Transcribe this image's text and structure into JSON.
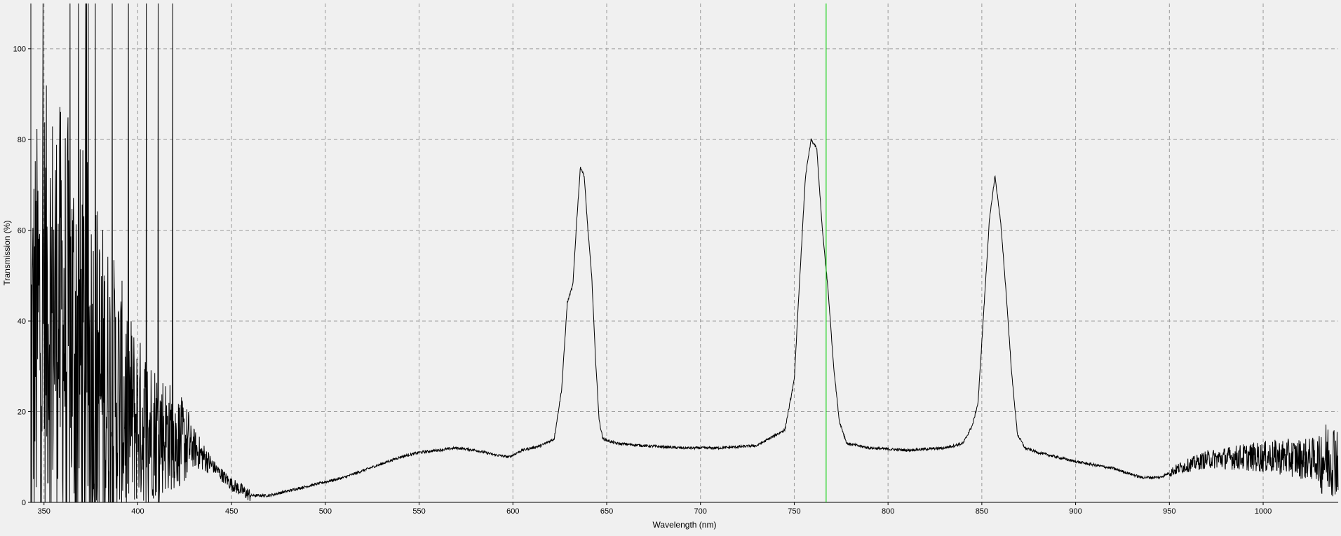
{
  "chart_data": {
    "type": "line",
    "xlabel": "Wavelength (nm)",
    "ylabel": "Transmission (%)",
    "xlim": [
      343,
      1040
    ],
    "ylim": [
      0,
      110
    ],
    "x_ticks": [
      350,
      400,
      450,
      500,
      550,
      600,
      650,
      700,
      750,
      800,
      850,
      900,
      950,
      1000
    ],
    "y_ticks": [
      0,
      20,
      40,
      60,
      80,
      100
    ],
    "grid": true,
    "grid_style": "dashed",
    "marker_line": {
      "x": 767,
      "color": "#00cc00"
    },
    "series": [
      {
        "color": "#000000",
        "noise_regions": [
          {
            "x_start": 343,
            "x_end": 372,
            "noise": "very high, spikes clipped beyond 110"
          },
          {
            "x_start": 372,
            "x_end": 440,
            "noise": "high, decreasing"
          },
          {
            "x_start": 950,
            "x_end": 1040,
            "noise": "moderate, increasing"
          }
        ],
        "points": [
          [
            343,
            30
          ],
          [
            350,
            45
          ],
          [
            360,
            40
          ],
          [
            370,
            32
          ],
          [
            380,
            25
          ],
          [
            390,
            22
          ],
          [
            400,
            18
          ],
          [
            410,
            16
          ],
          [
            420,
            14
          ],
          [
            430,
            12
          ],
          [
            440,
            8
          ],
          [
            450,
            4
          ],
          [
            460,
            1.5
          ],
          [
            470,
            1.5
          ],
          [
            480,
            2.5
          ],
          [
            490,
            3.5
          ],
          [
            500,
            4.5
          ],
          [
            510,
            5.5
          ],
          [
            520,
            7
          ],
          [
            530,
            8.5
          ],
          [
            540,
            10
          ],
          [
            550,
            11
          ],
          [
            560,
            11.5
          ],
          [
            570,
            12
          ],
          [
            580,
            11.5
          ],
          [
            590,
            10.5
          ],
          [
            598,
            10
          ],
          [
            605,
            11.5
          ],
          [
            615,
            12.5
          ],
          [
            622,
            14
          ],
          [
            626,
            25
          ],
          [
            629,
            44
          ],
          [
            632,
            48
          ],
          [
            634,
            62
          ],
          [
            636,
            74
          ],
          [
            638,
            72
          ],
          [
            640,
            60
          ],
          [
            642,
            50
          ],
          [
            644,
            32
          ],
          [
            646,
            18
          ],
          [
            648,
            14
          ],
          [
            655,
            13
          ],
          [
            670,
            12.5
          ],
          [
            690,
            12
          ],
          [
            710,
            12
          ],
          [
            730,
            12.5
          ],
          [
            745,
            16
          ],
          [
            750,
            27
          ],
          [
            753,
            50
          ],
          [
            756,
            72
          ],
          [
            759,
            80
          ],
          [
            762,
            78
          ],
          [
            765,
            60
          ],
          [
            768,
            47
          ],
          [
            771,
            30
          ],
          [
            774,
            18
          ],
          [
            778,
            13
          ],
          [
            790,
            12
          ],
          [
            810,
            11.5
          ],
          [
            830,
            12
          ],
          [
            840,
            13
          ],
          [
            845,
            17
          ],
          [
            848,
            22
          ],
          [
            851,
            42
          ],
          [
            854,
            62
          ],
          [
            857,
            72
          ],
          [
            860,
            62
          ],
          [
            863,
            46
          ],
          [
            866,
            28
          ],
          [
            869,
            15
          ],
          [
            873,
            12
          ],
          [
            880,
            11
          ],
          [
            900,
            9
          ],
          [
            920,
            7.5
          ],
          [
            935,
            5.5
          ],
          [
            945,
            5.5
          ],
          [
            955,
            7.5
          ],
          [
            970,
            9.5
          ],
          [
            990,
            10
          ],
          [
            1010,
            10
          ],
          [
            1025,
            9.5
          ],
          [
            1040,
            10
          ]
        ]
      }
    ]
  }
}
